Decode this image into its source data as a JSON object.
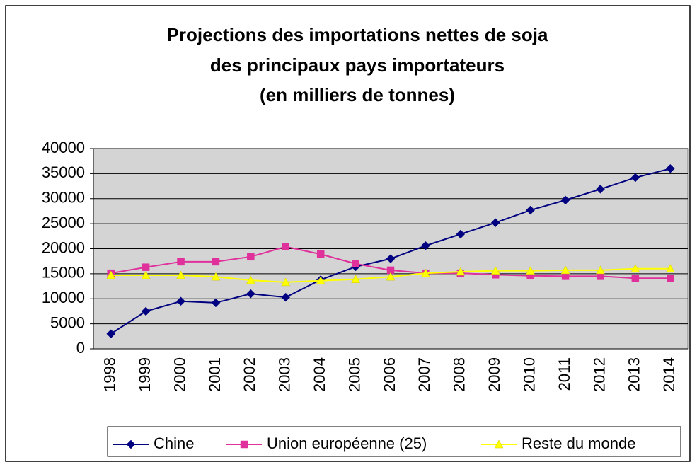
{
  "chart_data": {
    "type": "line",
    "title": [
      "Projections des importations nettes de soja",
      "des principaux pays importateurs",
      "(en milliers de tonnes)"
    ],
    "categories": [
      "1998",
      "1999",
      "2000",
      "2001",
      "2002",
      "2003",
      "2004",
      "2005",
      "2006",
      "2007",
      "2008",
      "2009",
      "2010",
      "2011",
      "2012",
      "2013",
      "2014"
    ],
    "series": [
      {
        "name": "Chine",
        "color": "#000080",
        "marker": "diamond",
        "values": [
          3000,
          7500,
          9500,
          9200,
          11000,
          10300,
          13800,
          16400,
          18000,
          20600,
          22900,
          25200,
          27700,
          29700,
          31900,
          34200,
          36000
        ]
      },
      {
        "name": "Union européenne (25)",
        "color": "#e0309b",
        "marker": "square",
        "values": [
          15100,
          16300,
          17400,
          17400,
          18400,
          20400,
          18900,
          17000,
          15700,
          15100,
          15100,
          14800,
          14600,
          14500,
          14500,
          14100,
          14100
        ]
      },
      {
        "name": "Reste du monde",
        "color": "#ffff00",
        "marker": "triangle",
        "values": [
          14700,
          14700,
          14700,
          14400,
          13700,
          13300,
          13600,
          13900,
          14400,
          15100,
          15400,
          15600,
          15600,
          15700,
          15700,
          16000,
          16000
        ]
      }
    ],
    "ylim": [
      0,
      40000
    ],
    "yticks": [
      0,
      5000,
      10000,
      15000,
      20000,
      25000,
      30000,
      35000,
      40000
    ],
    "grid": true,
    "legend": "bottom"
  }
}
